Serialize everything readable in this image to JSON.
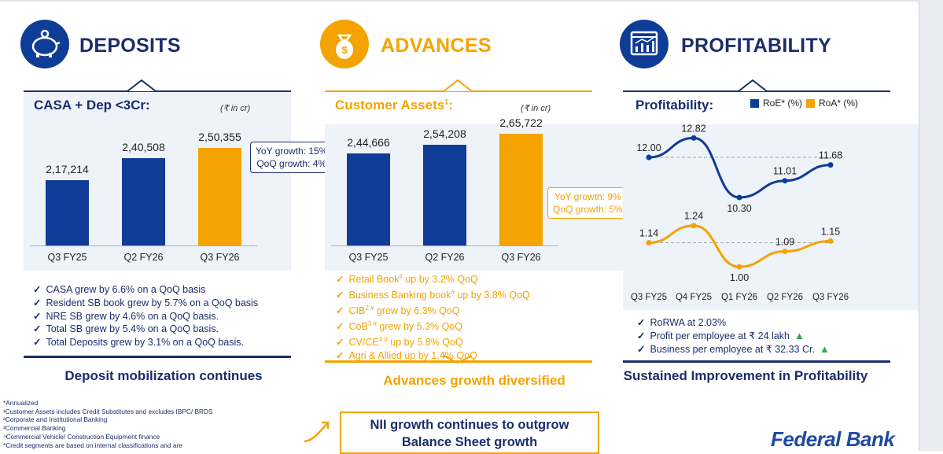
{
  "deposits": {
    "title": "DEPOSITS",
    "subtitle": "CASA + Dep <3Cr:",
    "unit": "(₹ in cr)",
    "callout": [
      "YoY growth: 15%",
      "QoQ growth: 4%"
    ],
    "bullets": [
      "CASA grew by 6.6% on a QoQ basis",
      "Resident SB book grew by 5.7% on a QoQ basis",
      "NRE SB grew by 4.6% on a QoQ basis.",
      "Total SB grew by 5.4% on a QoQ basis.",
      "Total Deposits grew by 3.1% on a QoQ basis."
    ],
    "conclusion": "Deposit mobilization continues"
  },
  "advances": {
    "title": "ADVANCES",
    "subtitle": "Customer Assets",
    "subtitle_sup": "1",
    "subtitle_tail": ":",
    "unit": "(₹ in cr)",
    "callout": [
      "YoY growth: 9%",
      "QoQ growth: 5%"
    ],
    "bullets": [
      {
        "pre": "Retail Book",
        "sup": "#",
        "post": " up by 3.2% QoQ"
      },
      {
        "pre": "Business Banking book",
        "sup": "#",
        "post": " up by 3.8% QoQ"
      },
      {
        "pre": "CIB",
        "sup": "2 #",
        "post": " grew by 6.3% QoQ"
      },
      {
        "pre": "CoB",
        "sup": "3 #",
        "post": " grew by 5.3% QoQ"
      },
      {
        "pre": "CV/CE",
        "sup": "4 #",
        "post": " up by 5.8% QoQ"
      },
      {
        "pre": "Agri & Allied up by 1.4% QoQ",
        "sup": "",
        "post": ""
      }
    ],
    "conclusion": "Advances growth diversified"
  },
  "profitability": {
    "title": "PROFITABILITY",
    "subtitle": "Profitability:",
    "legend": [
      "RoE* (%)",
      "RoA* (%)"
    ],
    "bullets": [
      "RoRWA at 2.03%",
      "Profit per employee at ₹ 24 lakh",
      "Business per employee at ₹ 32.33 Cr."
    ],
    "conclusion": "Sustained Improvement in Profitability"
  },
  "chart_data": [
    {
      "type": "bar",
      "title": "CASA + Dep <3Cr:",
      "unit": "(₹ in cr)",
      "categories": [
        "Q3 FY25",
        "Q2 FY26",
        "Q3 FY26"
      ],
      "values": [
        217214,
        240508,
        250355
      ],
      "labels": [
        "2,17,214",
        "2,40,508",
        "2,50,355"
      ],
      "colors": [
        "#0f3c96",
        "#0f3c96",
        "#f4a300"
      ]
    },
    {
      "type": "bar",
      "title": "Customer Assets",
      "unit": "(₹ in cr)",
      "categories": [
        "Q3 FY25",
        "Q2 FY26",
        "Q3 FY26"
      ],
      "values": [
        244666,
        254208,
        265722
      ],
      "labels": [
        "2,44,666",
        "2,54,208",
        "2,65,722"
      ],
      "colors": [
        "#0f3c96",
        "#0f3c96",
        "#f4a300"
      ]
    },
    {
      "type": "line",
      "title": "Profitability:",
      "categories": [
        "Q3 FY25",
        "Q4 FY25",
        "Q1 FY26",
        "Q2 FY26",
        "Q3 FY26"
      ],
      "series": [
        {
          "name": "RoE* (%)",
          "values": [
            12.0,
            12.82,
            10.3,
            11.01,
            11.68
          ],
          "labels": [
            "12.00",
            "12.82",
            "10.30",
            "11.01",
            "11.68"
          ],
          "color": "#0f3c96"
        },
        {
          "name": "RoA* (%)",
          "values": [
            1.14,
            1.24,
            1.0,
            1.09,
            1.15
          ],
          "labels": [
            "1.14",
            "1.24",
            "1.00",
            "1.09",
            "1.15"
          ],
          "color": "#f4a300"
        }
      ]
    }
  ],
  "footnotes": [
    "*Annualized",
    "¹Customer Assets includes Credit Substitutes and excludes IBPC/ BRDS",
    "²Corporate and Institutional Banking",
    "³Commercial Banking",
    "⁴Commercial Vehicle/ Construction Equipment finance",
    "*Credit segments are based on internal classifications and are"
  ],
  "nii_box": [
    "NII growth continues to outgrow",
    "Balance Sheet growth"
  ],
  "brand": "Federal Bank",
  "colors": {
    "navy": "#1b2d6b",
    "blue": "#0f3c96",
    "orange": "#f4a300",
    "panel": "#eef2f9"
  }
}
